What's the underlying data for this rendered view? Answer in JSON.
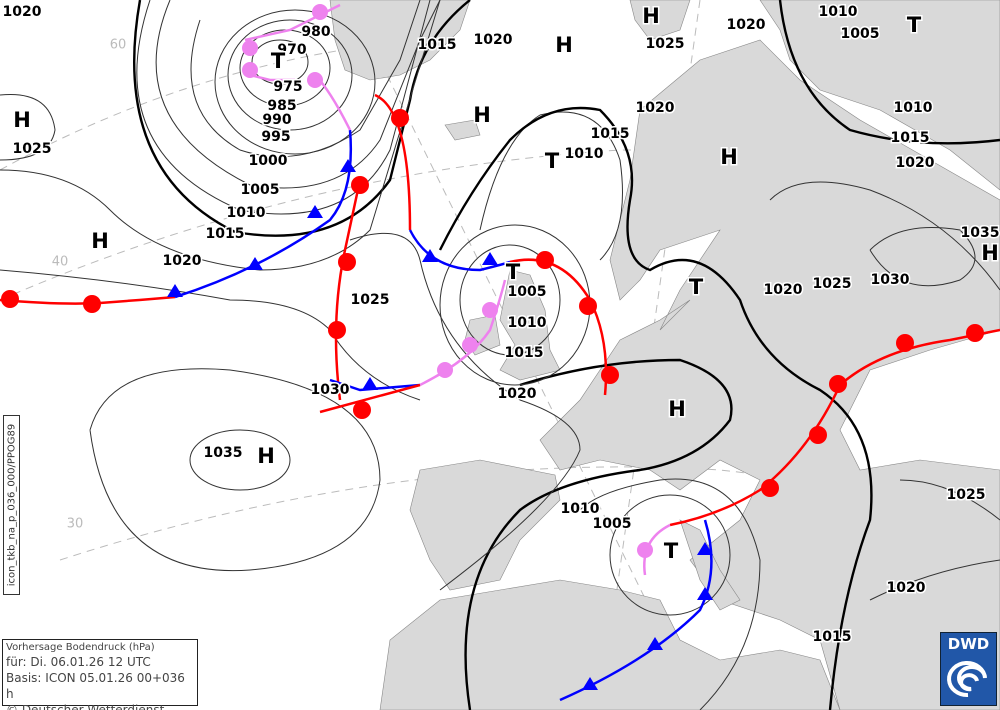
{
  "map": {
    "pressure_labels": [
      "1020",
      "980",
      "970",
      "975",
      "985",
      "990",
      "995",
      "1000",
      "1005",
      "1010",
      "1015",
      "1020",
      "1025",
      "1015",
      "1020",
      "1025",
      "1020",
      "1010",
      "1005",
      "1010",
      "1015",
      "1020",
      "1020",
      "1015",
      "1010",
      "1025",
      "1005",
      "1010",
      "1015",
      "1020",
      "1030",
      "1035",
      "1020",
      "1025",
      "1030",
      "1035",
      "1025",
      "1010",
      "1005",
      "1020",
      "1015"
    ],
    "centers": [
      "H",
      "H",
      "H",
      "H",
      "H",
      "H",
      "H",
      "H",
      "H",
      "T",
      "T",
      "T",
      "T",
      "T",
      "T"
    ],
    "latitude_labels": [
      "60",
      "40",
      "30"
    ],
    "colors": {
      "warm_front": "#ff0000",
      "cold_front": "#0000ff",
      "occlusion": "#ee82ee",
      "land": "#d9d9d9",
      "sea": "#ffffff",
      "logo": "#2157a8"
    }
  },
  "info_box": {
    "title": "Vorhersage Bodendruck (hPa)",
    "valid": "für:  Di. 06.01.26  12 UTC",
    "basis": "Basis: ICON  05.01.26 00+036 h",
    "copyright": "© Deutscher Wetterdienst"
  },
  "product_code": "icon_tkb_na_p_036_000/PPOG89",
  "logo": {
    "text": "DWD",
    "icon": "dwd-spiral-icon"
  }
}
